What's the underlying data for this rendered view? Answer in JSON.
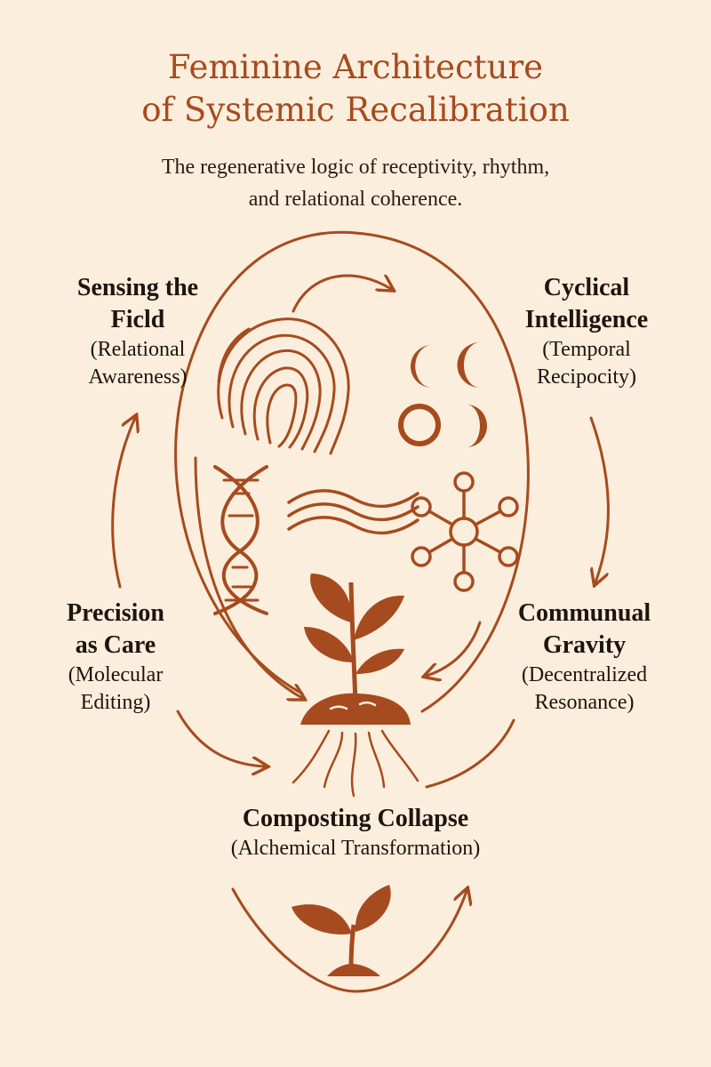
{
  "title": {
    "line1": "Feminine Architecture",
    "line2": "of Systemic Recalibration"
  },
  "subtitle": {
    "line1": "The regenerative logic of receptivity, rhythm,",
    "line2": "and relational coherence."
  },
  "nodes": {
    "sensing": {
      "head1": "Sensing the",
      "head2": "Ficld",
      "sub1": "(Relational",
      "sub2": "Awareness)"
    },
    "cyclical": {
      "head1": "Cyclical",
      "head2": "Intelligence",
      "sub1": "(Temporal",
      "sub2": "Recipocity)"
    },
    "precision": {
      "head1": "Precision",
      "head2": "as Care",
      "sub1": "(Molecular",
      "sub2": "Editing)"
    },
    "communal": {
      "head1": "Communual",
      "head2": "Gravity",
      "sub1": "(Decentralized",
      "sub2": "Resonance)"
    },
    "composting": {
      "head1": "Composting Collapse",
      "sub1": "(Alchemical Transformation)"
    }
  },
  "icons": [
    "fingerprint-icon",
    "moon-phases-icon",
    "dna-helix-icon",
    "wave-lines-icon",
    "network-hub-icon",
    "seedling-soil-icon",
    "roots-icon",
    "sprout-icon"
  ],
  "colors": {
    "accent": "#a64b1f",
    "background": "#fbeedc",
    "text": "#1e1410"
  }
}
